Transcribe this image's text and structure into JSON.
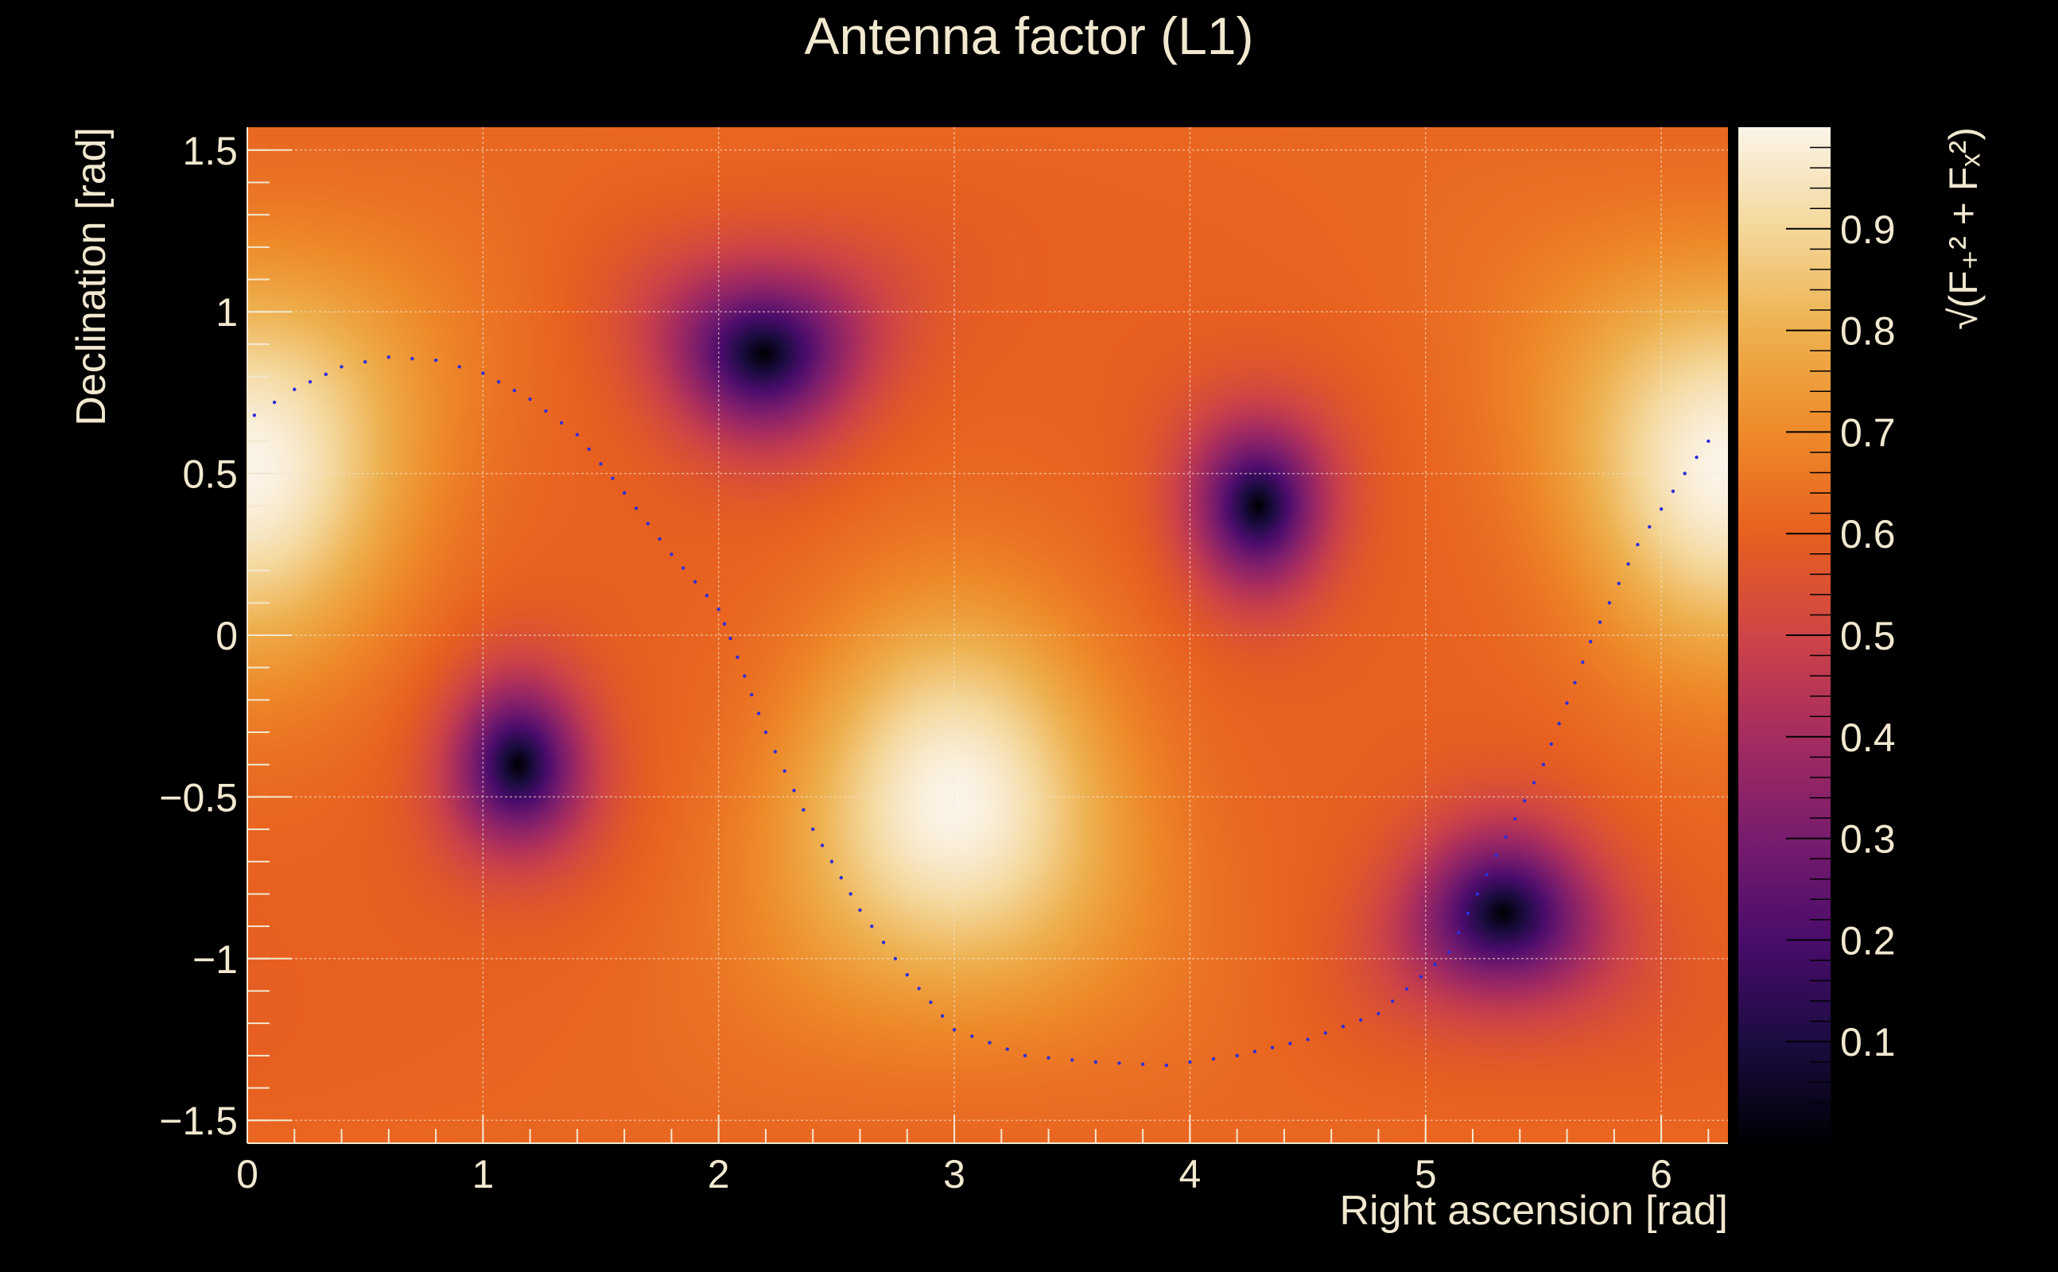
{
  "chart_data": {
    "type": "heatmap",
    "title": "Antenna factor (L1)",
    "xlabel": "Right ascension [rad]",
    "ylabel": "Declination [rad]",
    "colorbar_label": "√(F₊² + Fₓ²)",
    "xlim": [
      0,
      6.2832
    ],
    "ylim": [
      -1.5708,
      1.5708
    ],
    "zlim": [
      0,
      1
    ],
    "grid": true,
    "colormap": "inferno",
    "x_ticks": [
      0,
      1,
      2,
      3,
      4,
      5,
      6
    ],
    "x_tick_labels": [
      "0",
      "1",
      "2",
      "3",
      "4",
      "5",
      "6"
    ],
    "y_ticks": [
      -1.5,
      -1,
      -0.5,
      0,
      0.5,
      1,
      1.5
    ],
    "y_tick_labels": [
      "−1.5",
      "−1",
      "−0.5",
      "0",
      "0.5",
      "1",
      "1.5"
    ],
    "z_ticks": [
      0.1,
      0.2,
      0.3,
      0.4,
      0.5,
      0.6,
      0.7,
      0.8,
      0.9
    ],
    "z_tick_labels": [
      "0.1",
      "0.2",
      "0.3",
      "0.4",
      "0.5",
      "0.6",
      "0.7",
      "0.8",
      "0.9"
    ],
    "minima": [
      {
        "x": 1.15,
        "y": -0.4,
        "value": 0.0
      },
      {
        "x": 2.19,
        "y": 0.87,
        "value": 0.0
      },
      {
        "x": 4.29,
        "y": 0.4,
        "value": 0.0
      },
      {
        "x": 5.33,
        "y": -0.86,
        "value": 0.0
      }
    ],
    "maxima": [
      {
        "x": 3.0,
        "y": -0.52,
        "value": 1.0
      },
      {
        "x": 0.0,
        "y": 0.52,
        "value": 1.0
      },
      {
        "x": 6.28,
        "y": 0.52,
        "value": 1.0
      }
    ],
    "overlay_series": {
      "style": "dotted",
      "color": "#2f2fd8",
      "x": [
        0.03,
        0.2,
        0.4,
        0.6,
        0.8,
        1.0,
        1.2,
        1.4,
        1.6,
        1.8,
        2.0,
        2.05,
        2.2,
        2.4,
        2.6,
        2.8,
        3.0,
        3.3,
        3.6,
        3.9,
        4.2,
        4.5,
        4.8,
        5.1,
        5.3,
        5.5,
        5.7,
        5.9,
        6.1,
        6.25
      ],
      "y": [
        0.68,
        0.76,
        0.83,
        0.86,
        0.85,
        0.81,
        0.73,
        0.62,
        0.44,
        0.25,
        0.08,
        -0.01,
        -0.3,
        -0.6,
        -0.85,
        -1.05,
        -1.22,
        -1.3,
        -1.32,
        -1.33,
        -1.3,
        -1.25,
        -1.17,
        -0.98,
        -0.68,
        -0.4,
        -0.02,
        0.28,
        0.5,
        0.65
      ]
    }
  }
}
